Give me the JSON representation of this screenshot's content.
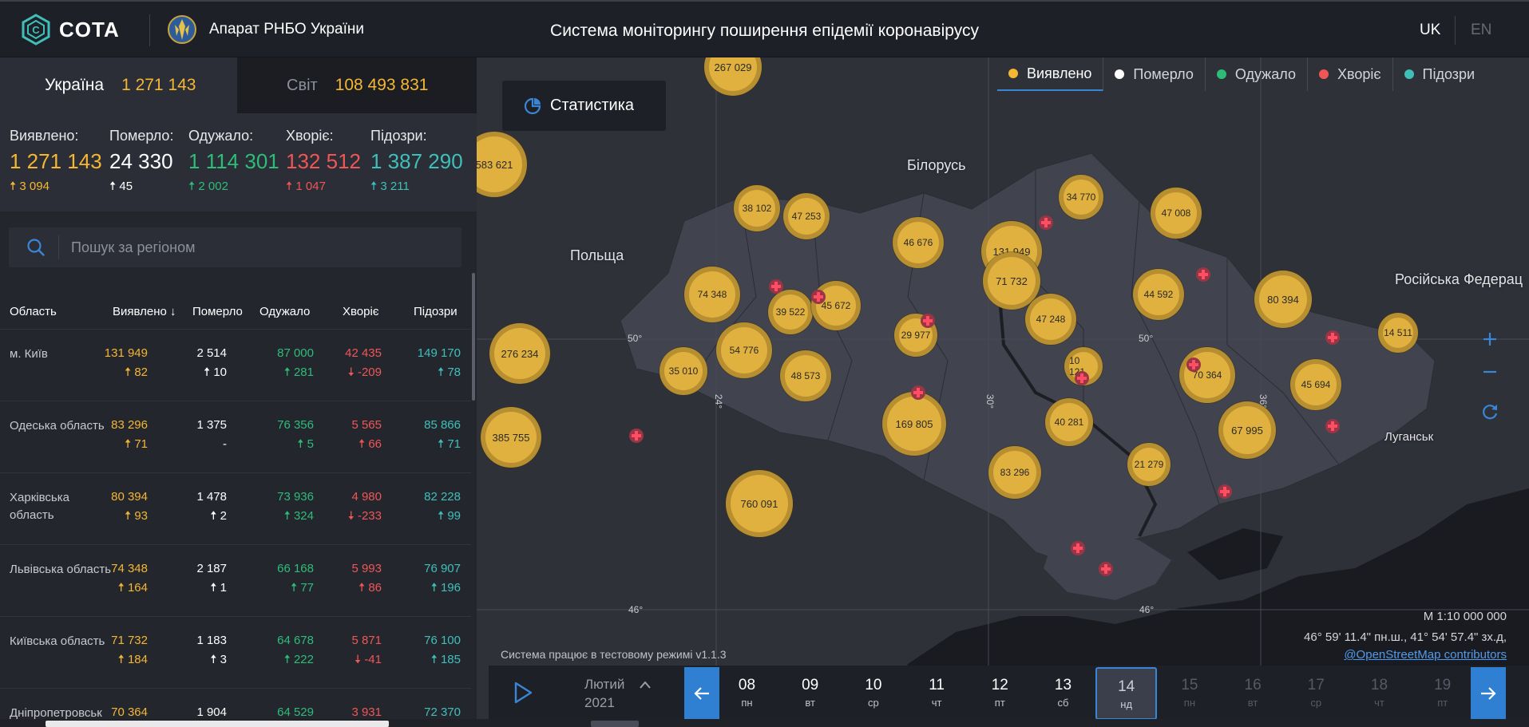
{
  "header": {
    "logo_text": "COTA",
    "org_name": "Апарат РНБО України",
    "title": "Система моніторингу поширення епідемії коронавірусу",
    "lang_uk": "UK",
    "lang_en": "EN"
  },
  "scope": {
    "ukraine_label": "Україна",
    "ukraine_value": "1 271 143",
    "world_label": "Світ",
    "world_value": "108 493 831"
  },
  "stats": {
    "confirmed": {
      "label": "Виявлено:",
      "value": "1 271 143",
      "delta": "3 094"
    },
    "deaths": {
      "label": "Померло:",
      "value": "24 330",
      "delta": "45"
    },
    "recovered": {
      "label": "Одужало:",
      "value": "1 114 301",
      "delta": "2 002"
    },
    "sick": {
      "label": "Хворіє:",
      "value": "132 512",
      "delta": "1 047"
    },
    "suspected": {
      "label": "Підозри:",
      "value": "1 387 290",
      "delta": "3 211"
    }
  },
  "search": {
    "placeholder": "Пошук за регіоном"
  },
  "table": {
    "headers": {
      "region": "Область",
      "confirmed": "Виявлено",
      "deaths": "Померло",
      "recovered": "Одужало",
      "sick": "Хворіє",
      "suspected": "Підозри"
    },
    "rows": [
      {
        "name": "м. Київ",
        "confirmed": "131 949",
        "confirmed_d": "82",
        "deaths": "2 514",
        "deaths_d": "10",
        "recovered": "87 000",
        "recovered_d": "281",
        "sick": "42 435",
        "sick_d": "-209",
        "suspected": "149 170",
        "suspected_d": "78"
      },
      {
        "name": "Одеська область",
        "confirmed": "83 296",
        "confirmed_d": "71",
        "deaths": "1 375",
        "deaths_d": "-",
        "recovered": "76 356",
        "recovered_d": "5",
        "sick": "5 565",
        "sick_d": "66",
        "suspected": "85 866",
        "suspected_d": "71"
      },
      {
        "name": "Харківська область",
        "confirmed": "80 394",
        "confirmed_d": "93",
        "deaths": "1 478",
        "deaths_d": "2",
        "recovered": "73 936",
        "recovered_d": "324",
        "sick": "4 980",
        "sick_d": "-233",
        "suspected": "82 228",
        "suspected_d": "99"
      },
      {
        "name": "Львівська область",
        "confirmed": "74 348",
        "confirmed_d": "164",
        "deaths": "2 187",
        "deaths_d": "1",
        "recovered": "66 168",
        "recovered_d": "77",
        "sick": "5 993",
        "sick_d": "86",
        "suspected": "76 907",
        "suspected_d": "196"
      },
      {
        "name": "Київська область",
        "confirmed": "71 732",
        "confirmed_d": "184",
        "deaths": "1 183",
        "deaths_d": "3",
        "recovered": "64 678",
        "recovered_d": "222",
        "sick": "5 871",
        "sick_d": "-41",
        "suspected": "76 100",
        "suspected_d": "185"
      },
      {
        "name": "Дніпропетровськ",
        "confirmed": "70 364",
        "confirmed_d": "",
        "deaths": "1 904",
        "deaths_d": "",
        "recovered": "64 529",
        "recovered_d": "",
        "sick": "3 931",
        "sick_d": "",
        "suspected": "72 370",
        "suspected_d": ""
      }
    ]
  },
  "map": {
    "stats_button": "Статистика",
    "legend": [
      "Виявлено",
      "Померло",
      "Одужало",
      "Хворіє",
      "Підозри"
    ],
    "countries": {
      "belarus": "Білорусь",
      "poland": "Польща",
      "russia": "Російська Федерац",
      "luhansk": "Луганськ"
    },
    "grid_labels": {
      "lat50w": "50°",
      "lat50e": "50°",
      "lat46w": "46°",
      "lat46e": "46°",
      "lon24": "24°",
      "lon30": "30°",
      "lon36": "36°"
    },
    "clusters": [
      "267 029",
      "583 621",
      "38 102",
      "47 253",
      "46 676",
      "34 770",
      "47 008",
      "131 949",
      "71 732",
      "74 348",
      "39 522",
      "45 672",
      "44 592",
      "80 394",
      "47 248",
      "29 977",
      "276 234",
      "54 776",
      "35 010",
      "48 573",
      "10 121",
      "70 364",
      "14 511",
      "45 694",
      "169 805",
      "40 281",
      "67 995",
      "385 755",
      "21 279",
      "83 296",
      "760 091"
    ],
    "test_mode": "Система працює в тестовому режимі v1.1.3",
    "scale": "М 1:10 000 000",
    "coords": "46° 59' 11.4\" пн.ш., 41° 54' 57.4\" зх.д,",
    "attribution": "@OpenStreetMap contributors"
  },
  "timeline": {
    "month": "Лютий",
    "year": "2021",
    "days": [
      {
        "num": "08",
        "wd": "пн"
      },
      {
        "num": "09",
        "wd": "вт"
      },
      {
        "num": "10",
        "wd": "ср"
      },
      {
        "num": "11",
        "wd": "чт"
      },
      {
        "num": "12",
        "wd": "пт"
      },
      {
        "num": "13",
        "wd": "сб"
      },
      {
        "num": "14",
        "wd": "нд"
      },
      {
        "num": "15",
        "wd": "пн"
      },
      {
        "num": "16",
        "wd": "вт"
      },
      {
        "num": "17",
        "wd": "ср"
      },
      {
        "num": "18",
        "wd": "чт"
      },
      {
        "num": "19",
        "wd": "пт"
      }
    ]
  },
  "colors": {
    "confirmed": "#f5b731",
    "deaths": "#ffffff",
    "recovered": "#2dbd79",
    "sick": "#f05656",
    "suspected": "#3ec0b9",
    "accent": "#2f7fd3"
  }
}
